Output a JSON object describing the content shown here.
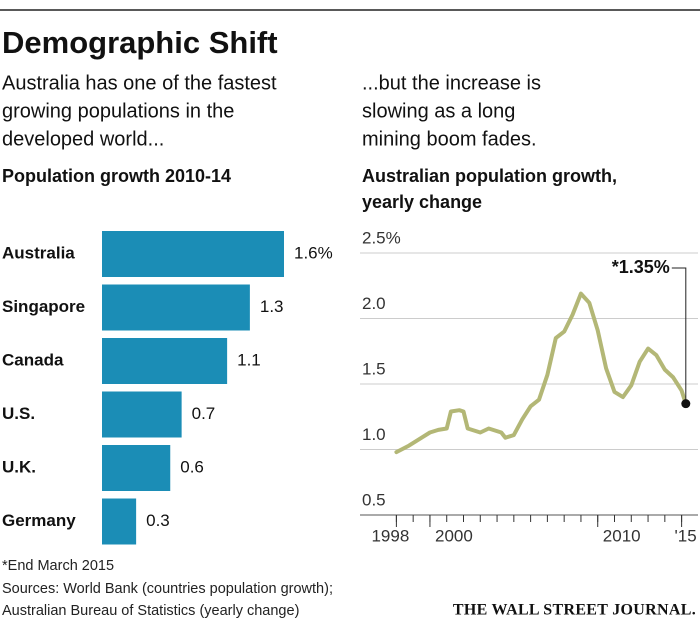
{
  "title": "Demographic Shift",
  "chart_data": [
    {
      "type": "hbar",
      "subtitle": [
        "Australia has one of the fastest",
        "growing populations in the",
        "developed world..."
      ],
      "title": "Population growth 2010-14",
      "categories": [
        "Australia",
        "Singapore",
        "Canada",
        "U.S.",
        "U.K.",
        "Germany"
      ],
      "values": [
        1.6,
        1.3,
        1.1,
        0.7,
        0.6,
        0.3
      ],
      "value_labels": [
        "1.6%",
        "1.3",
        "1.1",
        "0.7",
        "0.6",
        "0.3"
      ],
      "color": "#1b8db6"
    },
    {
      "type": "line",
      "subtitle": [
        "...but the increase is",
        "slowing as a long",
        "mining boom fades."
      ],
      "title": [
        "Australian population growth,",
        "yearly change"
      ],
      "x": [
        1998,
        1998.75,
        1999.5,
        2000,
        2000.5,
        2001,
        2001.25,
        2001.75,
        2002,
        2002.25,
        2003,
        2003.5,
        2004.25,
        2004.5,
        2005,
        2005.5,
        2006,
        2006.5,
        2007,
        2007.5,
        2008,
        2008.5,
        2009,
        2009.5,
        2010,
        2010.5,
        2011,
        2011.5,
        2012,
        2012.5,
        2013,
        2013.5,
        2014,
        2014.5,
        2015,
        2015.25
      ],
      "values": [
        0.98,
        1.03,
        1.09,
        1.13,
        1.15,
        1.16,
        1.29,
        1.3,
        1.29,
        1.16,
        1.13,
        1.16,
        1.13,
        1.09,
        1.11,
        1.23,
        1.33,
        1.38,
        1.57,
        1.85,
        1.9,
        2.03,
        2.19,
        2.12,
        1.91,
        1.62,
        1.44,
        1.4,
        1.49,
        1.67,
        1.77,
        1.72,
        1.61,
        1.55,
        1.45,
        1.35
      ],
      "color": "#b3b776",
      "xlim": [
        1997.5,
        2015.5
      ],
      "xticks": [
        1998,
        2000,
        2010,
        {
          "value": 2015,
          "label": "'15"
        }
      ],
      "xminor_ticks": [
        1998,
        1999,
        2000,
        2001,
        2002,
        2003,
        2004,
        2005,
        2006,
        2007,
        2008,
        2009,
        2010,
        2011,
        2012,
        2013,
        2014,
        2015
      ],
      "ylim": [
        0.5,
        2.5
      ],
      "yticks": [
        {
          "value": 2.5,
          "label": "2.5%"
        },
        {
          "value": 2.0,
          "label": "2.0"
        },
        1.5,
        {
          "value": 1.0,
          "label": "1.0"
        },
        0.5
      ],
      "grid": true,
      "annotation": "*1.35%"
    }
  ],
  "footnote": "*End March 2015",
  "sources": [
    "Sources: World Bank (countries population growth);",
    "Australian Bureau of Statistics (yearly change)"
  ],
  "publisher": "THE WALL STREET JOURNAL."
}
